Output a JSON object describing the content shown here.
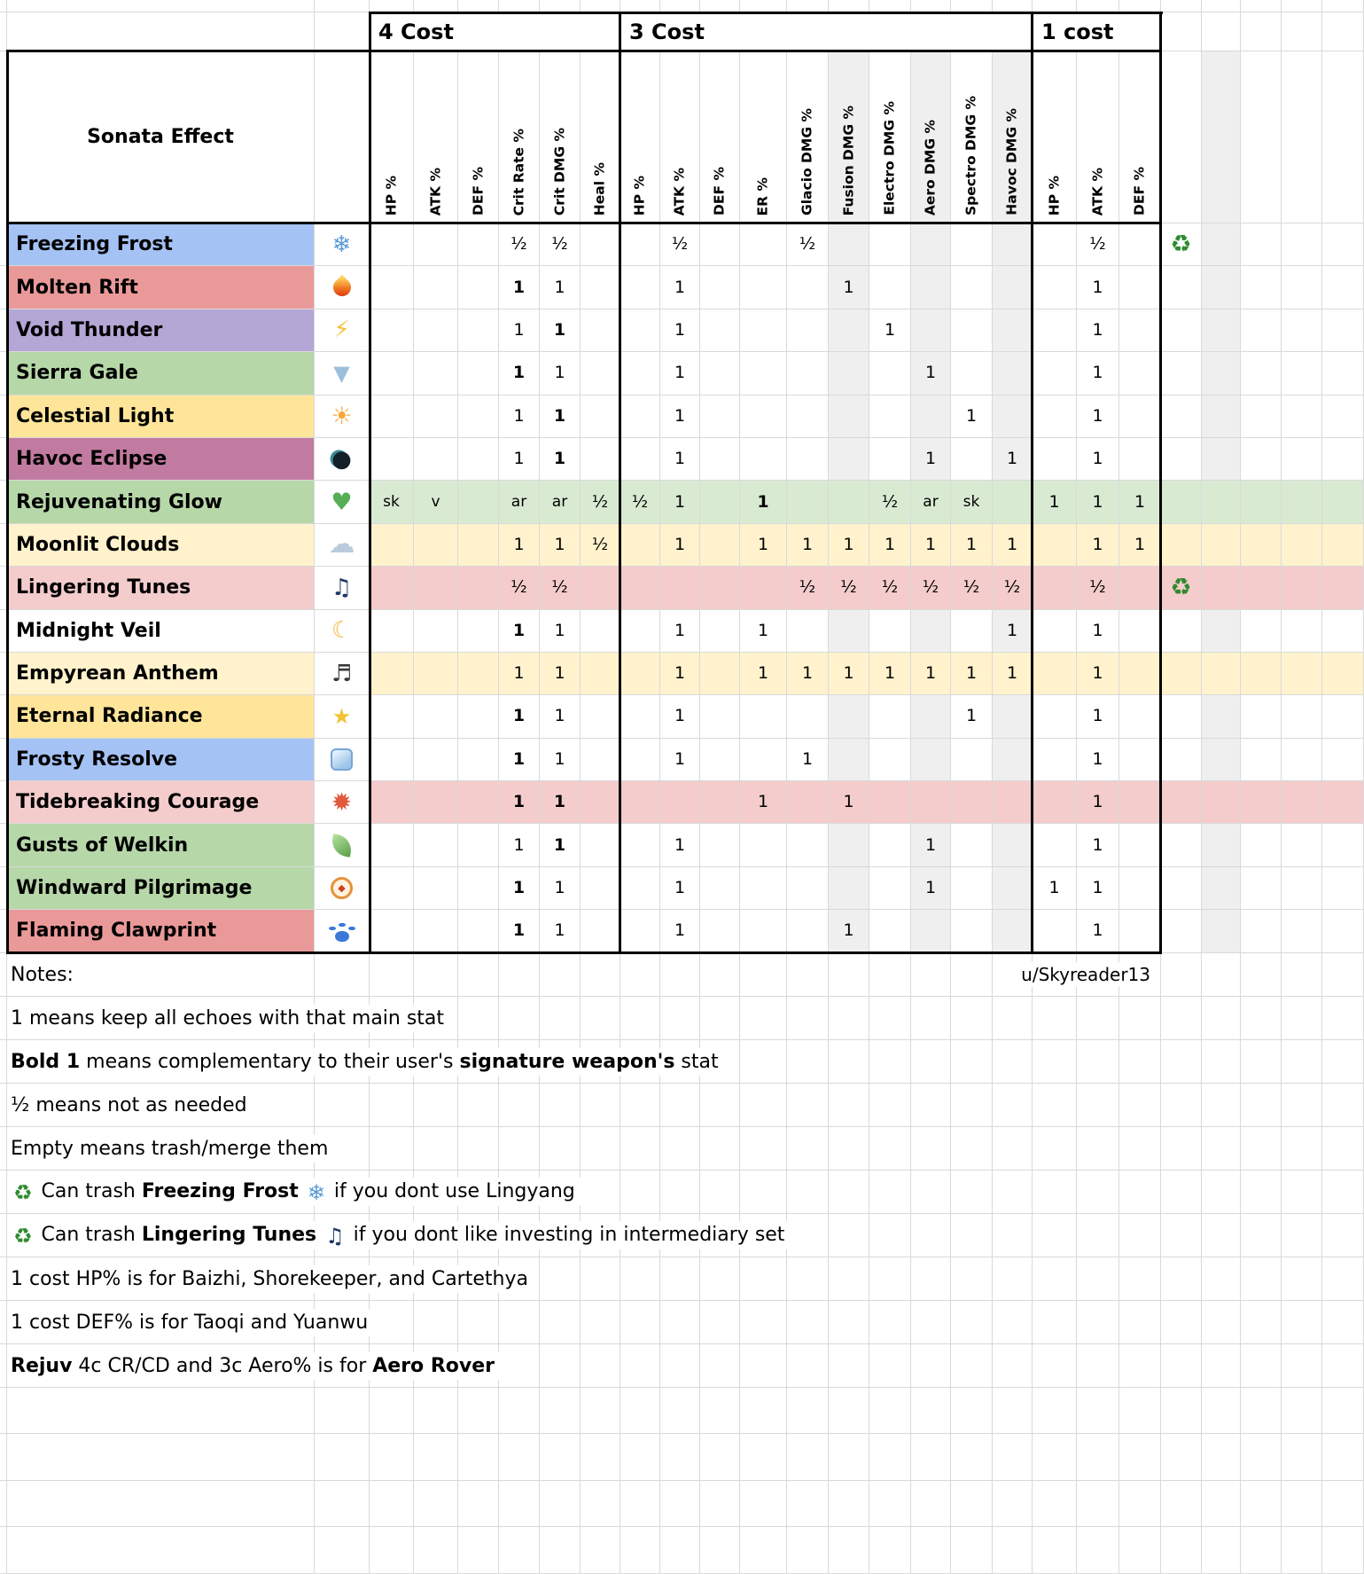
{
  "chart_data": {
    "type": "table",
    "corner_label": "Sonata Effect",
    "cost_groups": [
      {
        "label": "4 Cost",
        "columns": [
          "HP %",
          "ATK %",
          "DEF %",
          "Crit Rate %",
          "Crit DMG %",
          "Heal %"
        ]
      },
      {
        "label": "3 Cost",
        "columns": [
          "HP %",
          "ATK %",
          "DEF %",
          "ER %",
          "Glacio DMG %",
          "Fusion DMG %",
          "Electro DMG %",
          "Aero DMG %",
          "Spectro DMG %",
          "Havoc DMG %"
        ]
      },
      {
        "label": "1 cost",
        "columns": [
          "HP %",
          "ATK %",
          "DEF %"
        ]
      }
    ],
    "rows": [
      {
        "name": "Freezing Frost",
        "icon": "snowflake-icon",
        "name_bg": "#a4c2f4",
        "row_bg": null,
        "recycle": true,
        "c4": [
          null,
          null,
          null,
          {
            "v": "½"
          },
          {
            "v": "½"
          },
          null
        ],
        "c3": [
          null,
          {
            "v": "½"
          },
          null,
          null,
          {
            "v": "½"
          },
          null,
          null,
          null,
          null,
          null
        ],
        "c1": [
          null,
          {
            "v": "½"
          },
          null
        ]
      },
      {
        "name": "Molten Rift",
        "icon": "flame-icon",
        "name_bg": "#ea9999",
        "row_bg": null,
        "c4": [
          null,
          null,
          null,
          {
            "v": "1",
            "bold": true
          },
          {
            "v": "1"
          },
          null
        ],
        "c3": [
          null,
          {
            "v": "1"
          },
          null,
          null,
          null,
          {
            "v": "1"
          },
          null,
          null,
          null,
          null
        ],
        "c1": [
          null,
          {
            "v": "1"
          },
          null
        ]
      },
      {
        "name": "Void Thunder",
        "icon": "lightning-icon",
        "name_bg": "#b4a7d6",
        "row_bg": null,
        "c4": [
          null,
          null,
          null,
          {
            "v": "1"
          },
          {
            "v": "1",
            "bold": true
          },
          null
        ],
        "c3": [
          null,
          {
            "v": "1"
          },
          null,
          null,
          null,
          null,
          {
            "v": "1"
          },
          null,
          null,
          null
        ],
        "c1": [
          null,
          {
            "v": "1"
          },
          null
        ]
      },
      {
        "name": "Sierra Gale",
        "icon": "tornado-icon",
        "name_bg": "#b6d7a8",
        "row_bg": null,
        "c4": [
          null,
          null,
          null,
          {
            "v": "1",
            "bold": true
          },
          {
            "v": "1"
          },
          null
        ],
        "c3": [
          null,
          {
            "v": "1"
          },
          null,
          null,
          null,
          null,
          null,
          {
            "v": "1"
          },
          null,
          null
        ],
        "c1": [
          null,
          {
            "v": "1"
          },
          null
        ]
      },
      {
        "name": "Celestial Light",
        "icon": "sun-star-icon",
        "name_bg": "#ffe599",
        "row_bg": null,
        "c4": [
          null,
          null,
          null,
          {
            "v": "1"
          },
          {
            "v": "1",
            "bold": true
          },
          null
        ],
        "c3": [
          null,
          {
            "v": "1"
          },
          null,
          null,
          null,
          null,
          null,
          null,
          {
            "v": "1"
          },
          null
        ],
        "c1": [
          null,
          {
            "v": "1"
          },
          null
        ]
      },
      {
        "name": "Havoc Eclipse",
        "icon": "eclipse-icon",
        "name_bg": "#c27ba0",
        "row_bg": null,
        "c4": [
          null,
          null,
          null,
          {
            "v": "1"
          },
          {
            "v": "1",
            "bold": true
          },
          null
        ],
        "c3": [
          null,
          {
            "v": "1"
          },
          null,
          null,
          null,
          null,
          null,
          {
            "v": "1"
          },
          null,
          {
            "v": "1"
          }
        ],
        "c1": [
          null,
          {
            "v": "1"
          },
          null
        ]
      },
      {
        "name": "Rejuvenating Glow",
        "icon": "green-heart-icon",
        "name_bg": "#b6d7a8",
        "row_bg": "#d9ead3",
        "c4": [
          {
            "v": "sk"
          },
          {
            "v": "v"
          },
          null,
          {
            "v": "ar"
          },
          {
            "v": "ar"
          },
          {
            "v": "½"
          }
        ],
        "c3": [
          {
            "v": "½"
          },
          {
            "v": "1"
          },
          null,
          {
            "v": "1",
            "bold": true
          },
          null,
          null,
          {
            "v": "½"
          },
          {
            "v": "ar"
          },
          {
            "v": "sk"
          },
          null
        ],
        "c1": [
          {
            "v": "1"
          },
          {
            "v": "1"
          },
          {
            "v": "1"
          }
        ]
      },
      {
        "name": "Moonlit Clouds",
        "icon": "cloud-icon",
        "name_bg": "#fff2cc",
        "row_bg": "#fff2cc",
        "c4": [
          null,
          null,
          null,
          {
            "v": "1"
          },
          {
            "v": "1"
          },
          {
            "v": "½"
          }
        ],
        "c3": [
          null,
          {
            "v": "1"
          },
          null,
          {
            "v": "1"
          },
          {
            "v": "1"
          },
          {
            "v": "1"
          },
          {
            "v": "1"
          },
          {
            "v": "1"
          },
          {
            "v": "1"
          },
          {
            "v": "1"
          }
        ],
        "c1": [
          null,
          {
            "v": "1"
          },
          {
            "v": "1"
          }
        ]
      },
      {
        "name": "Lingering Tunes",
        "icon": "music-note-icon",
        "name_bg": "#f4cccc",
        "row_bg": "#f4cccc",
        "recycle": true,
        "c4": [
          null,
          null,
          null,
          {
            "v": "½"
          },
          {
            "v": "½"
          },
          null
        ],
        "c3": [
          null,
          null,
          null,
          null,
          {
            "v": "½"
          },
          {
            "v": "½"
          },
          {
            "v": "½"
          },
          {
            "v": "½"
          },
          {
            "v": "½"
          },
          {
            "v": "½"
          }
        ],
        "c1": [
          null,
          {
            "v": "½"
          },
          null
        ]
      },
      {
        "name": "Midnight Veil",
        "icon": "crescent-moon-icon",
        "name_bg": "#ffffff",
        "row_bg": null,
        "c4": [
          null,
          null,
          null,
          {
            "v": "1",
            "bold": true
          },
          {
            "v": "1"
          },
          null
        ],
        "c3": [
          null,
          {
            "v": "1"
          },
          null,
          {
            "v": "1"
          },
          null,
          null,
          null,
          null,
          null,
          {
            "v": "1"
          }
        ],
        "c1": [
          null,
          {
            "v": "1"
          },
          null
        ]
      },
      {
        "name": "Empyrean Anthem",
        "icon": "musical-score-icon",
        "name_bg": "#fff2cc",
        "row_bg": "#fff2cc",
        "c4": [
          null,
          null,
          null,
          {
            "v": "1"
          },
          {
            "v": "1"
          },
          null
        ],
        "c3": [
          null,
          {
            "v": "1"
          },
          null,
          {
            "v": "1"
          },
          {
            "v": "1"
          },
          {
            "v": "1"
          },
          {
            "v": "1"
          },
          {
            "v": "1"
          },
          {
            "v": "1"
          },
          {
            "v": "1"
          }
        ],
        "c1": [
          null,
          {
            "v": "1"
          },
          null
        ]
      },
      {
        "name": "Eternal Radiance",
        "icon": "sparkles-icon",
        "name_bg": "#ffe599",
        "row_bg": null,
        "c4": [
          null,
          null,
          null,
          {
            "v": "1",
            "bold": true
          },
          {
            "v": "1"
          },
          null
        ],
        "c3": [
          null,
          {
            "v": "1"
          },
          null,
          null,
          null,
          null,
          null,
          null,
          {
            "v": "1"
          },
          null
        ],
        "c1": [
          null,
          {
            "v": "1"
          },
          null
        ]
      },
      {
        "name": "Frosty Resolve",
        "icon": "ice-cube-icon",
        "name_bg": "#a4c2f4",
        "row_bg": null,
        "c4": [
          null,
          null,
          null,
          {
            "v": "1",
            "bold": true
          },
          {
            "v": "1"
          },
          null
        ],
        "c3": [
          null,
          {
            "v": "1"
          },
          null,
          null,
          {
            "v": "1"
          },
          null,
          null,
          null,
          null,
          null
        ],
        "c1": [
          null,
          {
            "v": "1"
          },
          null
        ]
      },
      {
        "name": "Tidebreaking Courage",
        "icon": "explosion-icon",
        "name_bg": "#f4cccc",
        "row_bg": "#f4cccc",
        "c4": [
          null,
          null,
          null,
          {
            "v": "1",
            "bold": true
          },
          {
            "v": "1",
            "bold": true
          },
          null
        ],
        "c3": [
          null,
          null,
          null,
          {
            "v": "1"
          },
          null,
          {
            "v": "1"
          },
          null,
          null,
          null,
          null
        ],
        "c1": [
          null,
          {
            "v": "1"
          },
          null
        ]
      },
      {
        "name": "Gusts of Welkin",
        "icon": "leaf-icon",
        "name_bg": "#b6d7a8",
        "row_bg": null,
        "c4": [
          null,
          null,
          null,
          {
            "v": "1"
          },
          {
            "v": "1",
            "bold": true
          },
          null
        ],
        "c3": [
          null,
          {
            "v": "1"
          },
          null,
          null,
          null,
          null,
          null,
          {
            "v": "1"
          },
          null,
          null
        ],
        "c1": [
          null,
          {
            "v": "1"
          },
          null
        ]
      },
      {
        "name": "Windward Pilgrimage",
        "icon": "compass-icon",
        "name_bg": "#b6d7a8",
        "row_bg": null,
        "c4": [
          null,
          null,
          null,
          {
            "v": "1",
            "bold": true
          },
          {
            "v": "1"
          },
          null
        ],
        "c3": [
          null,
          {
            "v": "1"
          },
          null,
          null,
          null,
          null,
          null,
          {
            "v": "1"
          },
          null,
          null
        ],
        "c1": [
          {
            "v": "1"
          },
          {
            "v": "1"
          },
          null
        ]
      },
      {
        "name": "Flaming Clawprint",
        "icon": "paw-print-icon",
        "name_bg": "#ea9999",
        "row_bg": null,
        "c4": [
          null,
          null,
          null,
          {
            "v": "1",
            "bold": true
          },
          {
            "v": "1"
          },
          null
        ],
        "c3": [
          null,
          {
            "v": "1"
          },
          null,
          null,
          null,
          {
            "v": "1"
          },
          null,
          null,
          null,
          null
        ],
        "c1": [
          null,
          {
            "v": "1"
          },
          null
        ]
      }
    ],
    "notes": [
      {
        "segments": [
          {
            "t": "Notes:"
          }
        ],
        "right_text": "u/Skyreader13"
      },
      {
        "segments": [
          {
            "t": "1 means keep all echoes with that main stat"
          }
        ]
      },
      {
        "segments": [
          {
            "t": "Bold 1",
            "b": true
          },
          {
            "t": " means complementary to their user's "
          },
          {
            "t": "signature weapon's",
            "b": true
          },
          {
            "t": " stat"
          }
        ]
      },
      {
        "segments": [
          {
            "t": "½ means not as needed"
          }
        ]
      },
      {
        "segments": [
          {
            "t": "Empty means trash/merge them"
          }
        ]
      },
      {
        "segments": [
          {
            "icon": "recycle-icon"
          },
          {
            "t": " Can trash "
          },
          {
            "t": "Freezing Frost",
            "b": true
          },
          {
            "t": " "
          },
          {
            "icon": "snowflake-icon"
          },
          {
            "t": " if you dont use Lingyang"
          }
        ]
      },
      {
        "segments": [
          {
            "icon": "recycle-icon"
          },
          {
            "t": " Can trash "
          },
          {
            "t": "Lingering Tunes",
            "b": true
          },
          {
            "t": " "
          },
          {
            "icon": "music-note-icon"
          },
          {
            "t": " if you dont like investing in intermediary set"
          }
        ]
      },
      {
        "segments": [
          {
            "t": "1 cost HP% is for Baizhi, Shorekeeper, and Cartethya"
          }
        ]
      },
      {
        "segments": [
          {
            "t": "1 cost DEF% is for Taoqi and Yuanwu"
          }
        ]
      },
      {
        "segments": [
          {
            "t": "Rejuv",
            "b": true
          },
          {
            "t": " 4c CR/CD and 3c Aero% is for "
          },
          {
            "t": "Aero Rover",
            "b": true
          }
        ]
      }
    ]
  },
  "colors": {
    "gridline": "#d9d9d9",
    "shaded_column": "#efefef",
    "thick_border": "#000000",
    "row_blue": "#a4c2f4",
    "row_red": "#ea9999",
    "row_purple": "#b4a7d6",
    "row_green": "#b6d7a8",
    "row_yellow": "#ffe599",
    "row_magenta": "#c27ba0",
    "highlight_green": "#d9ead3",
    "highlight_yellow": "#fff2cc",
    "highlight_red": "#f4cccc"
  }
}
